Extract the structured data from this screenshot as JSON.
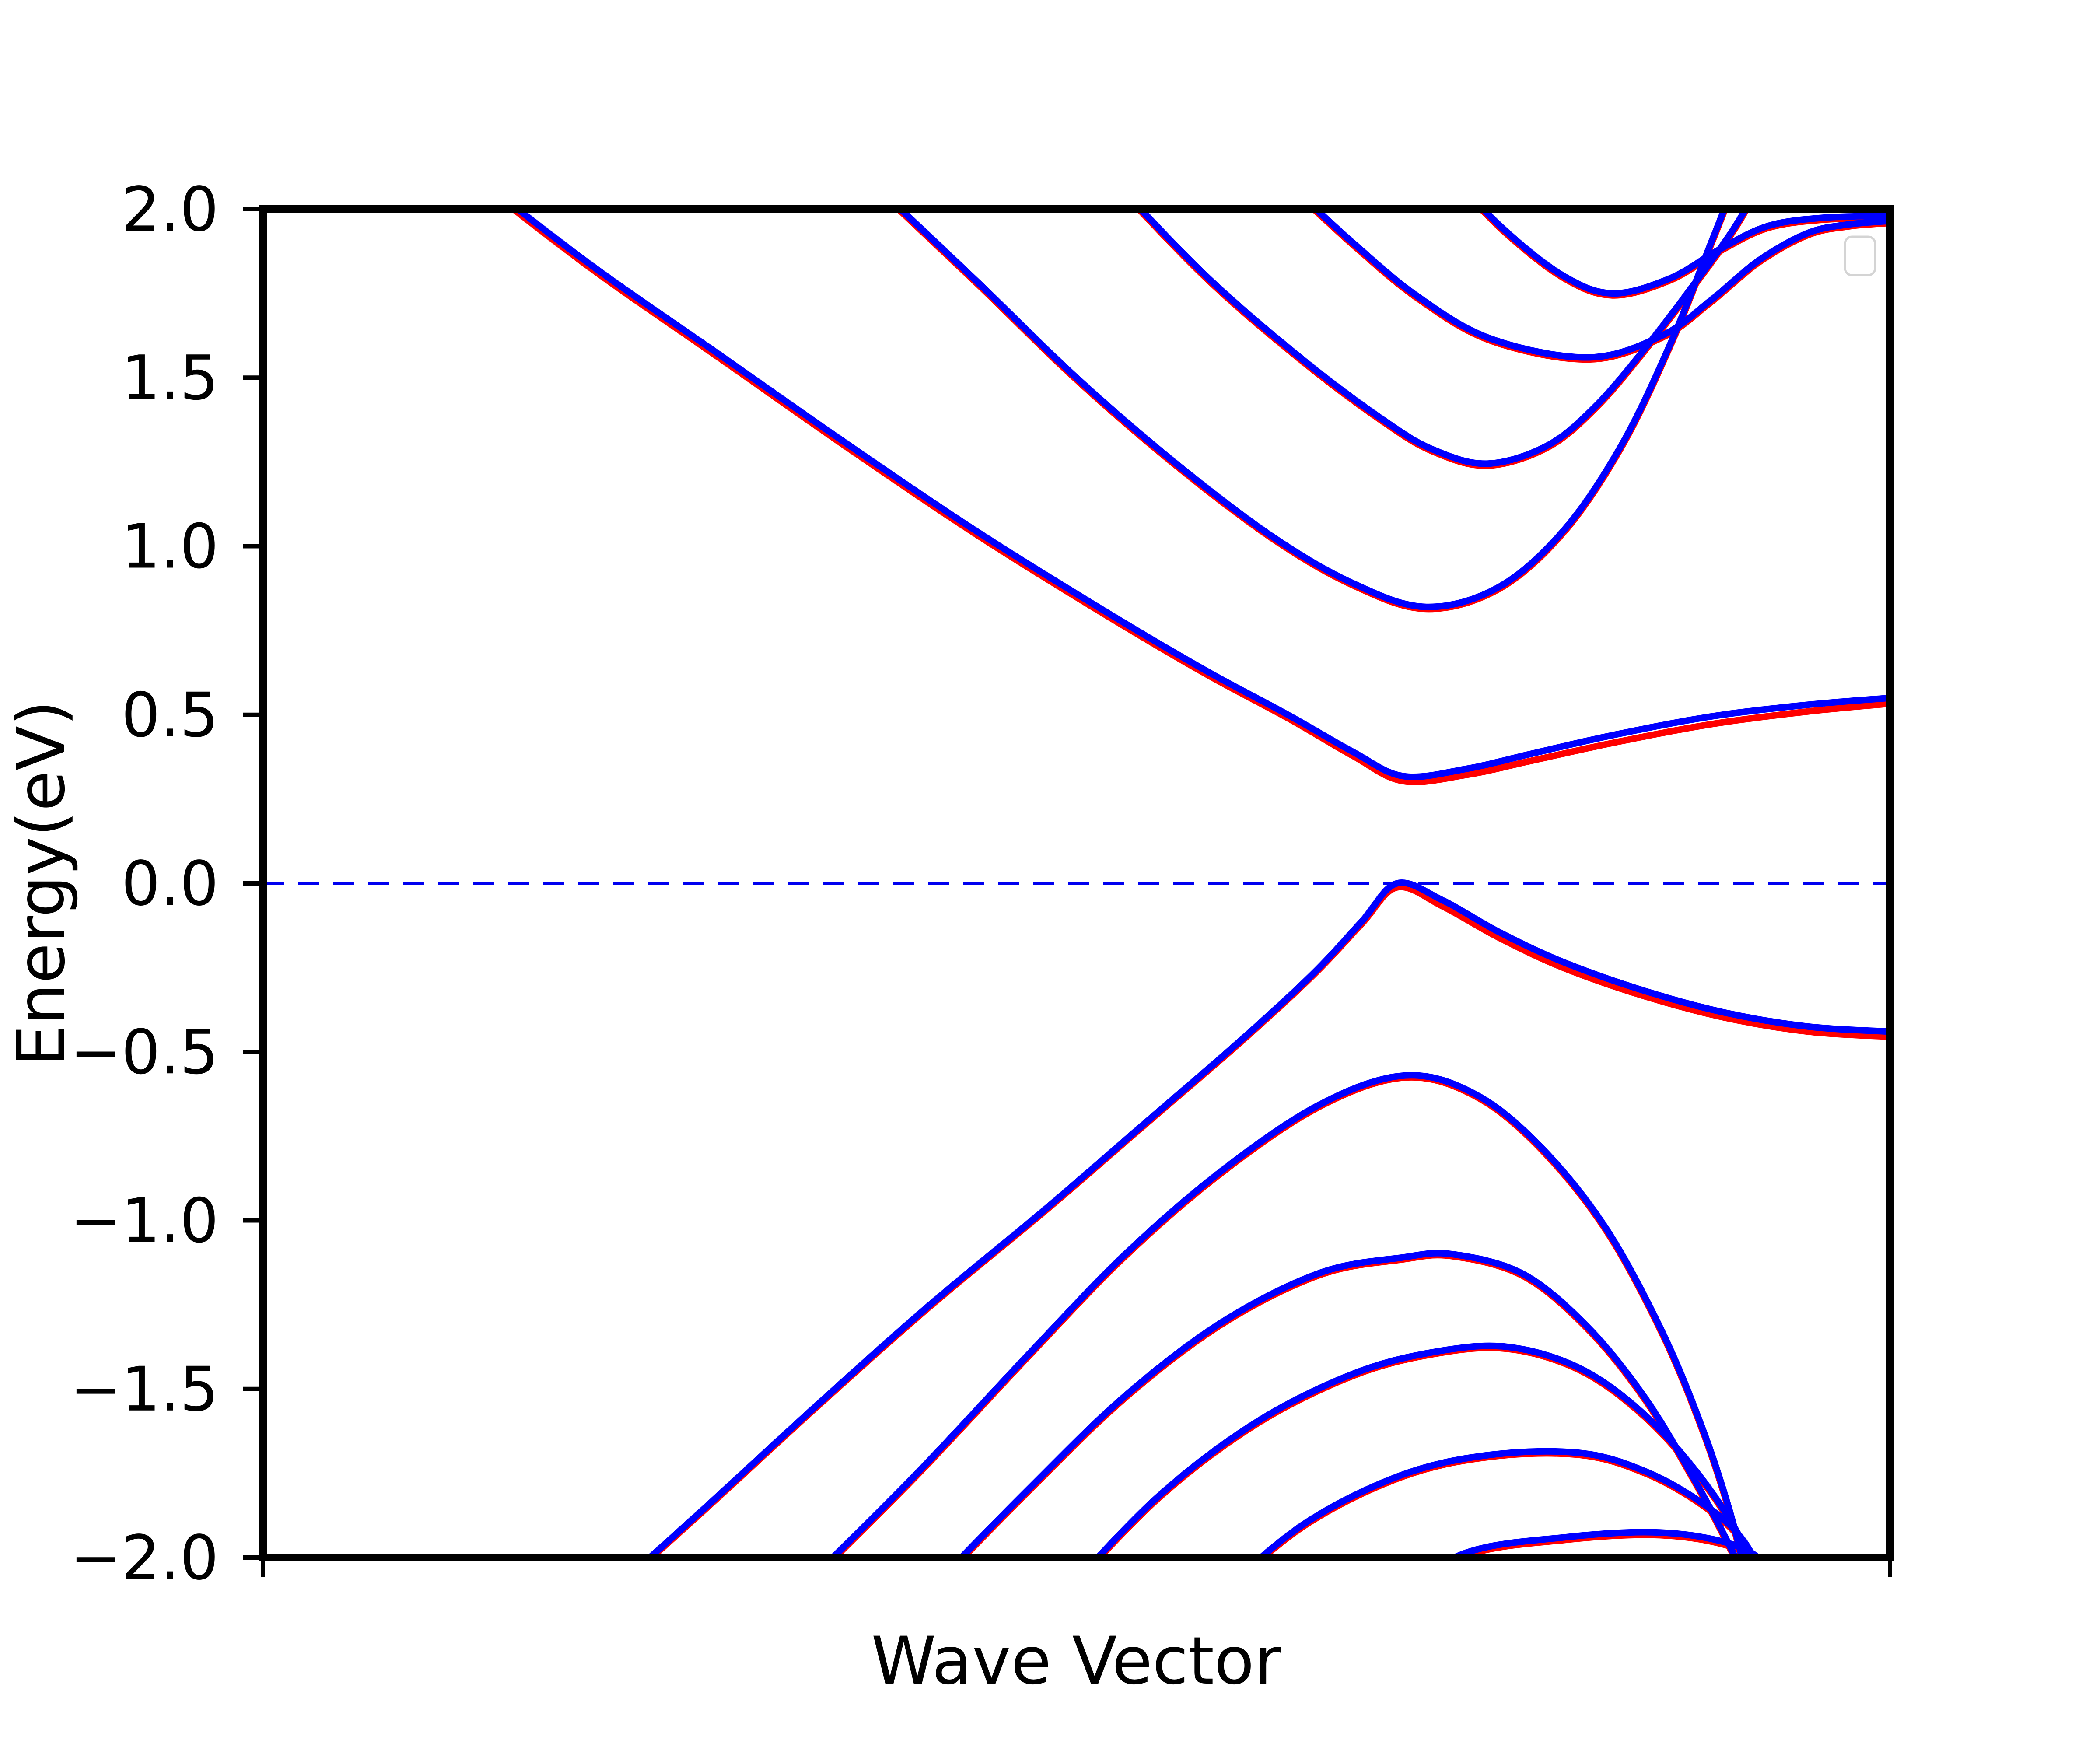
{
  "figure": {
    "background": "#ffffff",
    "xlabel": "Wave Vector",
    "ylabel": "Energy(eV)"
  },
  "chart_data": {
    "type": "line",
    "title": "",
    "xlabel": "Wave Vector",
    "ylabel": "Energy(eV)",
    "ylim": [
      -2.0,
      2.0
    ],
    "grid": false,
    "x_axis": {
      "unit": "normalized wave vector 0..1",
      "tick_positions": [
        0,
        1
      ],
      "tick_labels": [
        "",
        ""
      ]
    },
    "ytick_values": [
      2.0,
      1.5,
      1.0,
      0.5,
      0.0,
      -0.5,
      -1.0,
      -1.5,
      -2.0
    ],
    "ytick_labels": [
      "2.0",
      "1.5",
      "1.0",
      "0.5",
      "0.0",
      "−0.5",
      "−1.0",
      "−1.5",
      "−2.0"
    ],
    "fermi_level": {
      "energy": 0.0,
      "style": "dashed",
      "color": "#0000f0"
    },
    "legend": {
      "visible": true,
      "entries": [],
      "position": "upper right"
    },
    "series_colors": {
      "primary_blue": "#0000ff",
      "secondary_red": "#ff0000"
    },
    "bands": [
      {
        "id": "conduction-1",
        "kind": "conduction",
        "blue": [
          [
            0.125,
            2.12
          ],
          [
            0.2,
            1.84
          ],
          [
            0.28,
            1.57
          ],
          [
            0.36,
            1.3
          ],
          [
            0.44,
            1.04
          ],
          [
            0.52,
            0.8
          ],
          [
            0.58,
            0.63
          ],
          [
            0.63,
            0.5
          ],
          [
            0.67,
            0.39
          ],
          [
            0.701,
            0.318
          ],
          [
            0.74,
            0.34
          ],
          [
            0.78,
            0.385
          ],
          [
            0.83,
            0.44
          ],
          [
            0.89,
            0.495
          ],
          [
            0.95,
            0.53
          ],
          [
            1.0,
            0.55
          ]
        ],
        "red": [
          [
            0.125,
            2.11
          ],
          [
            0.2,
            1.83
          ],
          [
            0.28,
            1.56
          ],
          [
            0.36,
            1.29
          ],
          [
            0.44,
            1.03
          ],
          [
            0.52,
            0.79
          ],
          [
            0.58,
            0.62
          ],
          [
            0.63,
            0.49
          ],
          [
            0.67,
            0.378
          ],
          [
            0.701,
            0.303
          ],
          [
            0.74,
            0.322
          ],
          [
            0.78,
            0.364
          ],
          [
            0.83,
            0.417
          ],
          [
            0.89,
            0.472
          ],
          [
            0.95,
            0.51
          ],
          [
            1.0,
            0.533
          ]
        ]
      },
      {
        "id": "conduction-2",
        "kind": "conduction",
        "blue": [
          [
            0.37,
            2.1
          ],
          [
            0.44,
            1.78
          ],
          [
            0.5,
            1.5
          ],
          [
            0.56,
            1.25
          ],
          [
            0.62,
            1.03
          ],
          [
            0.67,
            0.89
          ],
          [
            0.715,
            0.82
          ],
          [
            0.76,
            0.88
          ],
          [
            0.8,
            1.05
          ],
          [
            0.835,
            1.3
          ],
          [
            0.865,
            1.6
          ],
          [
            0.89,
            1.9
          ],
          [
            0.908,
            2.12
          ]
        ],
        "red": [
          [
            0.37,
            2.094
          ],
          [
            0.44,
            1.774
          ],
          [
            0.5,
            1.494
          ],
          [
            0.56,
            1.244
          ],
          [
            0.62,
            1.024
          ],
          [
            0.67,
            0.884
          ],
          [
            0.715,
            0.814
          ],
          [
            0.76,
            0.874
          ],
          [
            0.8,
            1.044
          ],
          [
            0.835,
            1.294
          ],
          [
            0.865,
            1.594
          ],
          [
            0.89,
            1.894
          ],
          [
            0.908,
            2.114
          ]
        ]
      },
      {
        "id": "conduction-3",
        "kind": "conduction",
        "blue": [
          [
            0.52,
            2.1
          ],
          [
            0.58,
            1.8
          ],
          [
            0.64,
            1.55
          ],
          [
            0.69,
            1.37
          ],
          [
            0.72,
            1.285
          ],
          [
            0.753,
            1.245
          ],
          [
            0.79,
            1.3
          ],
          [
            0.82,
            1.42
          ],
          [
            0.85,
            1.59
          ],
          [
            0.88,
            1.78
          ],
          [
            0.905,
            1.95
          ],
          [
            0.925,
            2.12
          ]
        ],
        "red": [
          [
            0.52,
            2.094
          ],
          [
            0.58,
            1.794
          ],
          [
            0.64,
            1.544
          ],
          [
            0.69,
            1.364
          ],
          [
            0.72,
            1.279
          ],
          [
            0.753,
            1.239
          ],
          [
            0.79,
            1.294
          ],
          [
            0.82,
            1.414
          ],
          [
            0.85,
            1.584
          ],
          [
            0.88,
            1.774
          ],
          [
            0.905,
            1.944
          ],
          [
            0.925,
            2.114
          ]
        ]
      },
      {
        "id": "conduction-4",
        "kind": "conduction",
        "blue": [
          [
            0.625,
            2.1
          ],
          [
            0.67,
            1.9
          ],
          [
            0.71,
            1.74
          ],
          [
            0.755,
            1.615
          ],
          [
            0.815,
            1.56
          ],
          [
            0.86,
            1.625
          ],
          [
            0.89,
            1.73
          ],
          [
            0.92,
            1.85
          ],
          [
            0.95,
            1.93
          ],
          [
            0.975,
            1.955
          ],
          [
            1.0,
            1.965
          ]
        ],
        "red": [
          [
            0.625,
            2.094
          ],
          [
            0.67,
            1.894
          ],
          [
            0.71,
            1.734
          ],
          [
            0.755,
            1.609
          ],
          [
            0.815,
            1.554
          ],
          [
            0.86,
            1.619
          ],
          [
            0.89,
            1.724
          ],
          [
            0.92,
            1.844
          ],
          [
            0.95,
            1.924
          ],
          [
            0.975,
            1.949
          ],
          [
            1.0,
            1.959
          ]
        ]
      },
      {
        "id": "conduction-5",
        "kind": "conduction",
        "blue": [
          [
            0.73,
            2.1
          ],
          [
            0.765,
            1.93
          ],
          [
            0.8,
            1.8
          ],
          [
            0.83,
            1.75
          ],
          [
            0.865,
            1.795
          ],
          [
            0.895,
            1.88
          ],
          [
            0.925,
            1.95
          ],
          [
            0.96,
            1.975
          ],
          [
            1.0,
            1.98
          ]
        ],
        "red": [
          [
            0.73,
            2.094
          ],
          [
            0.765,
            1.924
          ],
          [
            0.8,
            1.794
          ],
          [
            0.83,
            1.744
          ],
          [
            0.865,
            1.789
          ],
          [
            0.895,
            1.874
          ],
          [
            0.925,
            1.944
          ],
          [
            0.96,
            1.969
          ],
          [
            1.0,
            1.974
          ]
        ]
      },
      {
        "id": "valence-1",
        "kind": "valence",
        "blue": [
          [
            0.21,
            -2.12
          ],
          [
            0.27,
            -1.86
          ],
          [
            0.34,
            -1.55
          ],
          [
            0.41,
            -1.25
          ],
          [
            0.48,
            -0.97
          ],
          [
            0.54,
            -0.72
          ],
          [
            0.6,
            -0.47
          ],
          [
            0.645,
            -0.27
          ],
          [
            0.675,
            -0.115
          ],
          [
            0.697,
            0.0
          ],
          [
            0.725,
            -0.05
          ],
          [
            0.76,
            -0.145
          ],
          [
            0.8,
            -0.235
          ],
          [
            0.85,
            -0.32
          ],
          [
            0.9,
            -0.385
          ],
          [
            0.95,
            -0.425
          ],
          [
            1.0,
            -0.44
          ]
        ],
        "red": [
          [
            0.21,
            -2.125
          ],
          [
            0.27,
            -1.865
          ],
          [
            0.34,
            -1.555
          ],
          [
            0.41,
            -1.255
          ],
          [
            0.48,
            -0.975
          ],
          [
            0.54,
            -0.725
          ],
          [
            0.6,
            -0.475
          ],
          [
            0.645,
            -0.275
          ],
          [
            0.675,
            -0.122
          ],
          [
            0.697,
            -0.012
          ],
          [
            0.725,
            -0.068
          ],
          [
            0.76,
            -0.162
          ],
          [
            0.8,
            -0.252
          ],
          [
            0.85,
            -0.336
          ],
          [
            0.9,
            -0.4
          ],
          [
            0.95,
            -0.44
          ],
          [
            1.0,
            -0.455
          ]
        ]
      },
      {
        "id": "valence-2",
        "kind": "valence",
        "blue": [
          [
            0.325,
            -2.12
          ],
          [
            0.4,
            -1.76
          ],
          [
            0.47,
            -1.4
          ],
          [
            0.53,
            -1.1
          ],
          [
            0.59,
            -0.85
          ],
          [
            0.65,
            -0.655
          ],
          [
            0.702,
            -0.57
          ],
          [
            0.745,
            -0.625
          ],
          [
            0.785,
            -0.78
          ],
          [
            0.825,
            -1.02
          ],
          [
            0.86,
            -1.33
          ],
          [
            0.885,
            -1.62
          ],
          [
            0.902,
            -1.87
          ],
          [
            0.915,
            -2.12
          ]
        ],
        "red": [
          [
            0.325,
            -2.126
          ],
          [
            0.4,
            -1.766
          ],
          [
            0.47,
            -1.406
          ],
          [
            0.53,
            -1.106
          ],
          [
            0.59,
            -0.856
          ],
          [
            0.65,
            -0.661
          ],
          [
            0.702,
            -0.576
          ],
          [
            0.745,
            -0.631
          ],
          [
            0.785,
            -0.786
          ],
          [
            0.825,
            -1.026
          ],
          [
            0.86,
            -1.336
          ],
          [
            0.885,
            -1.626
          ],
          [
            0.902,
            -1.876
          ],
          [
            0.915,
            -2.126
          ]
        ]
      },
      {
        "id": "valence-3",
        "kind": "valence",
        "blue": [
          [
            0.405,
            -2.12
          ],
          [
            0.47,
            -1.8
          ],
          [
            0.53,
            -1.52
          ],
          [
            0.59,
            -1.3
          ],
          [
            0.65,
            -1.155
          ],
          [
            0.7,
            -1.11
          ],
          [
            0.731,
            -1.1
          ],
          [
            0.775,
            -1.16
          ],
          [
            0.815,
            -1.32
          ],
          [
            0.85,
            -1.53
          ],
          [
            0.88,
            -1.77
          ],
          [
            0.903,
            -1.98
          ],
          [
            0.916,
            -2.12
          ]
        ],
        "red": [
          [
            0.405,
            -2.126
          ],
          [
            0.47,
            -1.806
          ],
          [
            0.53,
            -1.526
          ],
          [
            0.59,
            -1.306
          ],
          [
            0.65,
            -1.161
          ],
          [
            0.7,
            -1.116
          ],
          [
            0.731,
            -1.106
          ],
          [
            0.775,
            -1.166
          ],
          [
            0.815,
            -1.326
          ],
          [
            0.85,
            -1.536
          ],
          [
            0.88,
            -1.776
          ],
          [
            0.903,
            -1.986
          ],
          [
            0.916,
            -2.126
          ]
        ]
      },
      {
        "id": "valence-4",
        "kind": "valence",
        "blue": [
          [
            0.49,
            -2.12
          ],
          [
            0.55,
            -1.82
          ],
          [
            0.61,
            -1.6
          ],
          [
            0.67,
            -1.455
          ],
          [
            0.72,
            -1.39
          ],
          [
            0.765,
            -1.375
          ],
          [
            0.81,
            -1.44
          ],
          [
            0.85,
            -1.58
          ],
          [
            0.885,
            -1.77
          ],
          [
            0.91,
            -1.96
          ],
          [
            0.922,
            -2.12
          ]
        ],
        "red": [
          [
            0.49,
            -2.126
          ],
          [
            0.55,
            -1.826
          ],
          [
            0.61,
            -1.606
          ],
          [
            0.67,
            -1.461
          ],
          [
            0.72,
            -1.396
          ],
          [
            0.765,
            -1.381
          ],
          [
            0.81,
            -1.446
          ],
          [
            0.85,
            -1.586
          ],
          [
            0.885,
            -1.776
          ],
          [
            0.91,
            -1.966
          ],
          [
            0.922,
            -2.126
          ]
        ]
      },
      {
        "id": "valence-5",
        "kind": "valence",
        "blue": [
          [
            0.585,
            -2.12
          ],
          [
            0.64,
            -1.9
          ],
          [
            0.7,
            -1.755
          ],
          [
            0.755,
            -1.695
          ],
          [
            0.81,
            -1.69
          ],
          [
            0.85,
            -1.745
          ],
          [
            0.885,
            -1.84
          ],
          [
            0.91,
            -1.95
          ],
          [
            0.928,
            -2.12
          ]
        ],
        "red": [
          [
            0.585,
            -2.126
          ],
          [
            0.64,
            -1.906
          ],
          [
            0.7,
            -1.761
          ],
          [
            0.755,
            -1.701
          ],
          [
            0.81,
            -1.696
          ],
          [
            0.85,
            -1.751
          ],
          [
            0.885,
            -1.846
          ],
          [
            0.91,
            -1.956
          ],
          [
            0.928,
            -2.126
          ]
        ]
      },
      {
        "id": "valence-6",
        "kind": "valence",
        "blue": [
          [
            0.69,
            -2.12
          ],
          [
            0.74,
            -1.985
          ],
          [
            0.8,
            -1.94
          ],
          [
            0.854,
            -1.925
          ],
          [
            0.895,
            -1.95
          ],
          [
            0.92,
            -2.005
          ],
          [
            0.933,
            -2.12
          ]
        ],
        "red": [
          [
            0.69,
            -2.128
          ],
          [
            0.74,
            -1.993
          ],
          [
            0.8,
            -1.948
          ],
          [
            0.854,
            -1.933
          ],
          [
            0.895,
            -1.958
          ],
          [
            0.92,
            -2.013
          ],
          [
            0.933,
            -2.128
          ]
        ]
      }
    ]
  }
}
